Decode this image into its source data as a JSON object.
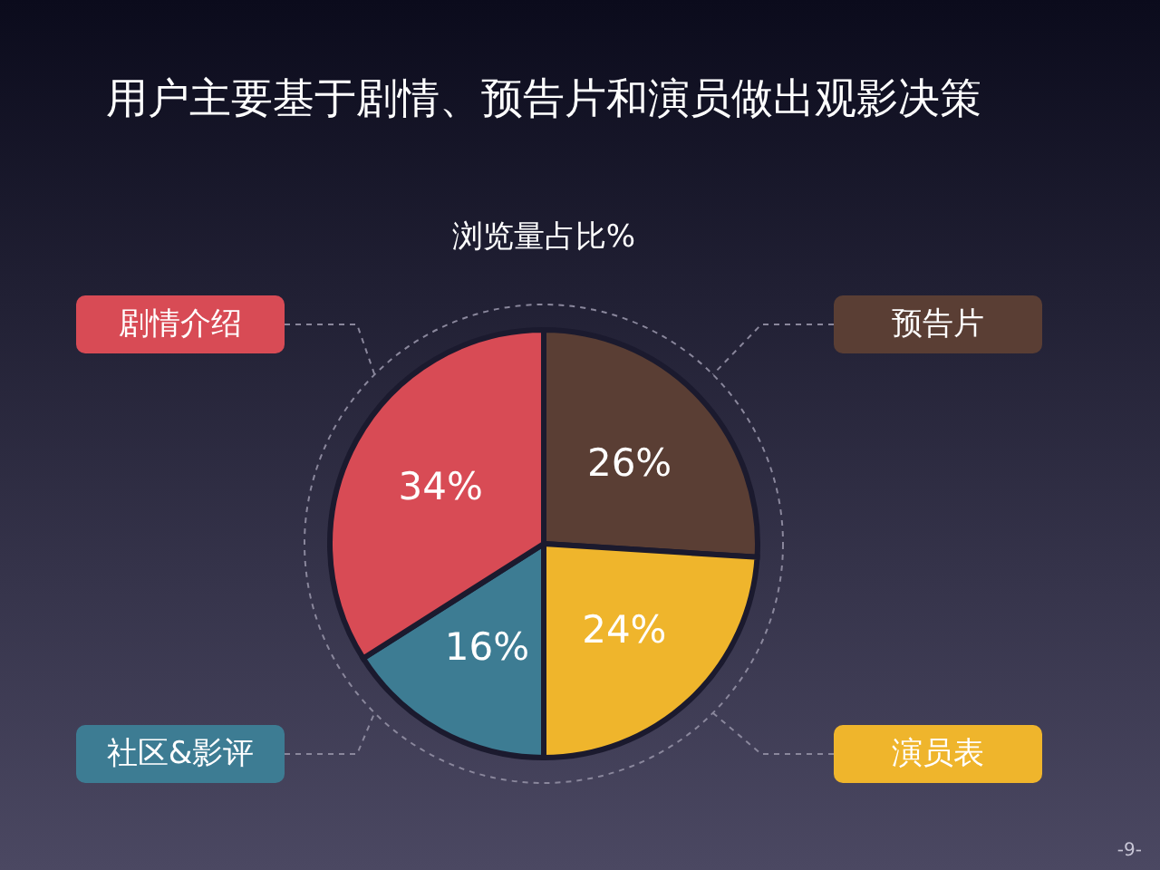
{
  "chart_data": {
    "type": "pie",
    "title": "用户主要基于剧情、预告片和演员做出观影决策",
    "subtitle": "浏览量占比%",
    "categories": [
      "预告片",
      "演员表",
      "社区&影评",
      "剧情介绍"
    ],
    "values": [
      26,
      24,
      16,
      34
    ],
    "value_labels": [
      "26%",
      "24%",
      "16%",
      "34%"
    ],
    "colors": [
      "#5a3e34",
      "#efb52c",
      "#3d7c93",
      "#d84b55"
    ],
    "annotations": [
      "-9-"
    ]
  }
}
